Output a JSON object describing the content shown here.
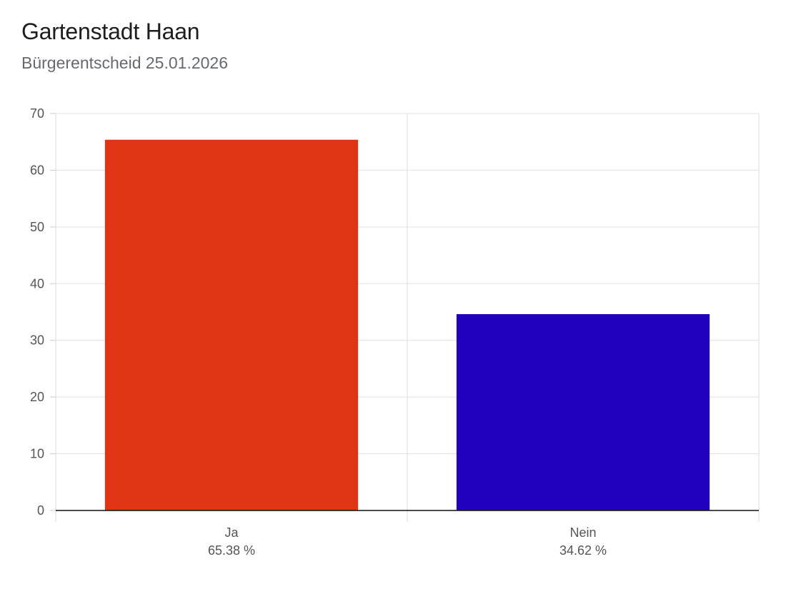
{
  "header": {
    "title": "Gartenstadt Haan",
    "subtitle": "Bürgerentscheid 25.01.2026"
  },
  "chart_data": {
    "type": "bar",
    "categories": [
      "Ja",
      "Nein"
    ],
    "category_sublabels": [
      "65.38 %",
      "34.62 %"
    ],
    "values": [
      65.38,
      34.62
    ],
    "colors": [
      "#e03515",
      "#2300bd"
    ],
    "ylim": [
      0,
      70
    ],
    "yticks": [
      0,
      10,
      20,
      30,
      40,
      50,
      60,
      70
    ],
    "grid": true,
    "legend": "none"
  }
}
